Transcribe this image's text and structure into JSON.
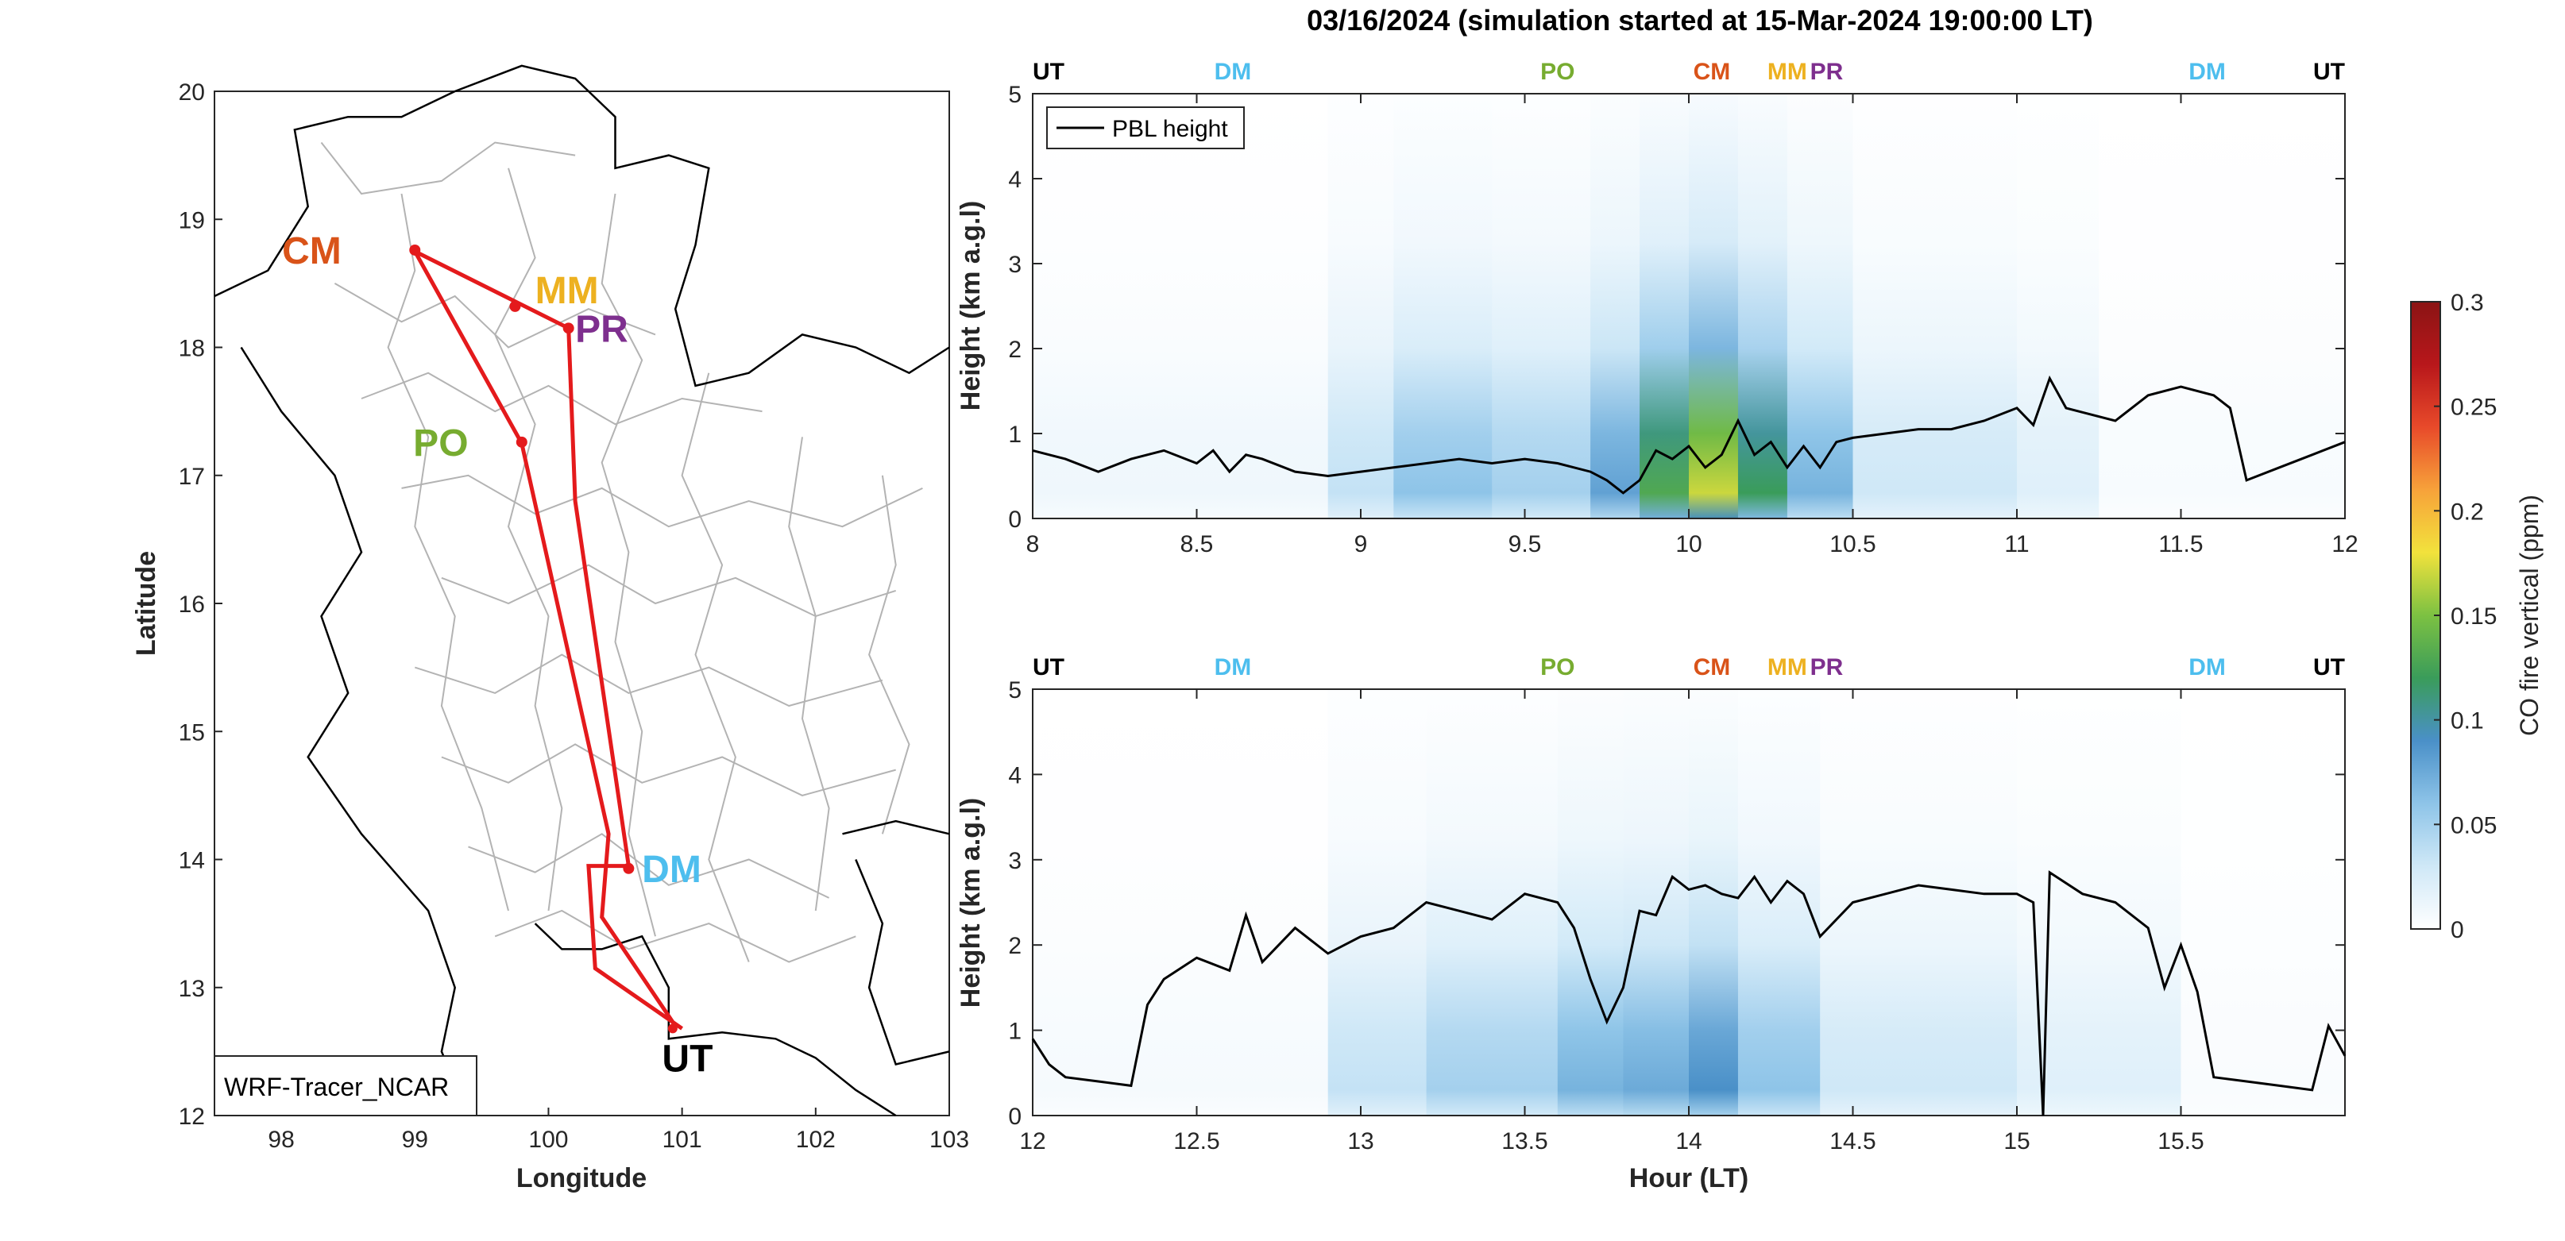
{
  "figure": {
    "title": "03/16/2024 (simulation started at 15-Mar-2024 19:00:00 LT)"
  },
  "colors": {
    "route": "#e41a1c",
    "CM": "#d95319",
    "MM": "#edb120",
    "PR": "#7e2f8e",
    "PO": "#77ac30",
    "DM": "#4dbeee",
    "UT": "#000000",
    "borders": "#b3b3b3",
    "pbl_line": "#000000"
  },
  "chart_data": [
    {
      "type": "map",
      "xlabel": "Longitude",
      "ylabel": "Latitude",
      "xlim": [
        97.5,
        103
      ],
      "ylim": [
        12,
        20
      ],
      "xticks": [
        98,
        99,
        100,
        101,
        102,
        103
      ],
      "yticks": [
        12,
        13,
        14,
        15,
        16,
        17,
        18,
        19,
        20
      ],
      "annotation": "WRF-Tracer_NCAR",
      "route": [
        [
          101.0,
          12.68
        ],
        [
          100.35,
          13.15
        ],
        [
          100.3,
          13.95
        ],
        [
          100.6,
          13.95
        ],
        [
          100.2,
          16.8
        ],
        [
          100.15,
          18.15
        ],
        [
          99.0,
          18.75
        ],
        [
          99.8,
          17.25
        ],
        [
          100.45,
          14.2
        ],
        [
          100.4,
          13.55
        ],
        [
          100.95,
          12.7
        ]
      ],
      "stations": [
        {
          "label": "CM",
          "lon": 99.0,
          "lat": 18.76,
          "label_lon": 98.45,
          "label_lat": 18.76,
          "anchor": "end"
        },
        {
          "label": "MM",
          "lon": 99.75,
          "lat": 18.32,
          "label_lon": 99.9,
          "label_lat": 18.45,
          "anchor": "start"
        },
        {
          "label": "PR",
          "lon": 100.15,
          "lat": 18.15,
          "label_lon": 100.2,
          "label_lat": 18.15,
          "anchor": "start"
        },
        {
          "label": "PO",
          "lon": 99.8,
          "lat": 17.26,
          "label_lon": 99.4,
          "label_lat": 17.26,
          "anchor": "end"
        },
        {
          "label": "DM",
          "lon": 100.6,
          "lat": 13.93,
          "label_lon": 100.7,
          "label_lat": 13.93,
          "anchor": "start"
        },
        {
          "label": "UT",
          "lon": 100.93,
          "lat": 12.68,
          "label_lon": 100.85,
          "label_lat": 12.45,
          "anchor": "start"
        }
      ]
    },
    {
      "type": "heatmap",
      "xlabel": "",
      "ylabel": "Height (km a.g.l)",
      "xlim": [
        8,
        12
      ],
      "ylim": [
        0,
        5
      ],
      "xticks": [
        "8",
        "8.5",
        "9",
        "9.5",
        "10",
        "10.5",
        "11",
        "11.5",
        "12"
      ],
      "yticks": [
        "0",
        "1",
        "2",
        "3",
        "4",
        "5"
      ],
      "legend": {
        "label": "PBL height",
        "placement": "top-left"
      },
      "top_labels": [
        {
          "label": "UT",
          "x": 8.0
        },
        {
          "label": "DM",
          "x": 8.61
        },
        {
          "label": "PO",
          "x": 9.6
        },
        {
          "label": "CM",
          "x": 10.07
        },
        {
          "label": "MM",
          "x": 10.3
        },
        {
          "label": "PR",
          "x": 10.42
        },
        {
          "label": "DM",
          "x": 11.58
        },
        {
          "label": "UT",
          "x": 12.0
        }
      ],
      "pbl_height": {
        "x": [
          8.0,
          8.1,
          8.2,
          8.3,
          8.4,
          8.5,
          8.55,
          8.6,
          8.65,
          8.7,
          8.8,
          8.9,
          9.0,
          9.1,
          9.2,
          9.3,
          9.4,
          9.5,
          9.6,
          9.7,
          9.75,
          9.8,
          9.85,
          9.9,
          9.95,
          10.0,
          10.05,
          10.1,
          10.15,
          10.2,
          10.25,
          10.3,
          10.35,
          10.4,
          10.45,
          10.5,
          10.6,
          10.7,
          10.8,
          10.9,
          11.0,
          11.05,
          11.1,
          11.15,
          11.2,
          11.3,
          11.4,
          11.5,
          11.6,
          11.65,
          11.7,
          11.8,
          11.9,
          12.0
        ],
        "y": [
          0.8,
          0.7,
          0.55,
          0.7,
          0.8,
          0.65,
          0.8,
          0.55,
          0.75,
          0.7,
          0.55,
          0.5,
          0.55,
          0.6,
          0.65,
          0.7,
          0.65,
          0.7,
          0.65,
          0.55,
          0.45,
          0.3,
          0.45,
          0.8,
          0.7,
          0.85,
          0.6,
          0.75,
          1.15,
          0.75,
          0.9,
          0.6,
          0.85,
          0.6,
          0.9,
          0.95,
          1.0,
          1.05,
          1.05,
          1.15,
          1.3,
          1.1,
          1.65,
          1.3,
          1.25,
          1.15,
          1.45,
          1.55,
          1.45,
          1.3,
          0.45,
          0.6,
          0.75,
          0.9
        ]
      },
      "field_columns": [
        {
          "x": [
            8.0,
            8.9
          ],
          "max_ppm": 0.01
        },
        {
          "x": [
            8.9,
            9.1
          ],
          "max_ppm": 0.035
        },
        {
          "x": [
            9.1,
            9.4
          ],
          "max_ppm": 0.06
        },
        {
          "x": [
            9.4,
            9.7
          ],
          "max_ppm": 0.05
        },
        {
          "x": [
            9.7,
            9.85
          ],
          "max_ppm": 0.08
        },
        {
          "x": [
            9.85,
            10.0
          ],
          "max_ppm": 0.13
        },
        {
          "x": [
            10.0,
            10.15
          ],
          "max_ppm": 0.17
        },
        {
          "x": [
            10.15,
            10.3
          ],
          "max_ppm": 0.12
        },
        {
          "x": [
            10.3,
            10.5
          ],
          "max_ppm": 0.07
        },
        {
          "x": [
            10.5,
            11.0
          ],
          "max_ppm": 0.03
        },
        {
          "x": [
            11.0,
            11.25
          ],
          "max_ppm": 0.02
        },
        {
          "x": [
            11.25,
            12.0
          ],
          "max_ppm": 0.005
        }
      ]
    },
    {
      "type": "heatmap",
      "xlabel": "Hour (LT)",
      "ylabel": "Height (km a.g.l)",
      "xlim": [
        12,
        16
      ],
      "ylim": [
        0,
        5
      ],
      "xticks": [
        "12",
        "12.5",
        "13",
        "13.5",
        "14",
        "14.5",
        "15",
        "15.5"
      ],
      "yticks": [
        "0",
        "1",
        "2",
        "3",
        "4",
        "5"
      ],
      "top_labels": [
        {
          "label": "UT",
          "x": 12.0
        },
        {
          "label": "DM",
          "x": 12.61
        },
        {
          "label": "PO",
          "x": 13.6
        },
        {
          "label": "CM",
          "x": 14.07
        },
        {
          "label": "MM",
          "x": 14.3
        },
        {
          "label": "PR",
          "x": 14.42
        },
        {
          "label": "DM",
          "x": 15.58
        },
        {
          "label": "UT",
          "x": 16.0
        }
      ],
      "pbl_height": {
        "x": [
          12.0,
          12.05,
          12.1,
          12.2,
          12.3,
          12.35,
          12.4,
          12.5,
          12.6,
          12.65,
          12.7,
          12.8,
          12.9,
          13.0,
          13.1,
          13.2,
          13.3,
          13.4,
          13.5,
          13.6,
          13.65,
          13.7,
          13.75,
          13.8,
          13.85,
          13.9,
          13.95,
          14.0,
          14.05,
          14.1,
          14.15,
          14.2,
          14.25,
          14.3,
          14.35,
          14.4,
          14.5,
          14.6,
          14.7,
          14.8,
          14.9,
          15.0,
          15.05,
          15.08,
          15.1,
          15.12,
          15.2,
          15.3,
          15.4,
          15.45,
          15.5,
          15.55,
          15.6,
          15.7,
          15.8,
          15.9,
          15.95,
          16.0
        ],
        "y": [
          0.9,
          0.6,
          0.45,
          0.4,
          0.35,
          1.3,
          1.6,
          1.85,
          1.7,
          2.35,
          1.8,
          2.2,
          1.9,
          2.1,
          2.2,
          2.5,
          2.4,
          2.3,
          2.6,
          2.5,
          2.2,
          1.6,
          1.1,
          1.5,
          2.4,
          2.35,
          2.8,
          2.65,
          2.7,
          2.6,
          2.55,
          2.8,
          2.5,
          2.75,
          2.6,
          2.1,
          2.5,
          2.6,
          2.7,
          2.65,
          2.6,
          2.6,
          2.5,
          0.0,
          2.85,
          2.8,
          2.6,
          2.5,
          2.2,
          1.5,
          2.0,
          1.45,
          0.45,
          0.4,
          0.35,
          0.3,
          1.05,
          0.7
        ]
      },
      "field_columns": [
        {
          "x": [
            12.0,
            12.9
          ],
          "max_ppm": 0.006
        },
        {
          "x": [
            12.9,
            13.2
          ],
          "max_ppm": 0.035
        },
        {
          "x": [
            13.2,
            13.6
          ],
          "max_ppm": 0.05
        },
        {
          "x": [
            13.6,
            13.8
          ],
          "max_ppm": 0.07
        },
        {
          "x": [
            13.8,
            14.0
          ],
          "max_ppm": 0.075
        },
        {
          "x": [
            14.0,
            14.15
          ],
          "max_ppm": 0.09
        },
        {
          "x": [
            14.15,
            14.4
          ],
          "max_ppm": 0.06
        },
        {
          "x": [
            14.4,
            15.0
          ],
          "max_ppm": 0.03
        },
        {
          "x": [
            15.0,
            15.5
          ],
          "max_ppm": 0.02
        },
        {
          "x": [
            15.5,
            16.0
          ],
          "max_ppm": 0.004
        }
      ]
    }
  ],
  "colorbar": {
    "label": "CO fire vertical (ppm)",
    "range": [
      0,
      0.3
    ],
    "ticks": [
      "0",
      "0.05",
      "0.1",
      "0.15",
      "0.2",
      "0.25",
      "0.3"
    ],
    "stops": [
      "#ffffff",
      "#cfe8f7",
      "#8ec4e8",
      "#4a90c8",
      "#3a9c5a",
      "#7cc142",
      "#f2e23c",
      "#f7a23a",
      "#e84a2a",
      "#b8171b",
      "#8b1414"
    ]
  }
}
